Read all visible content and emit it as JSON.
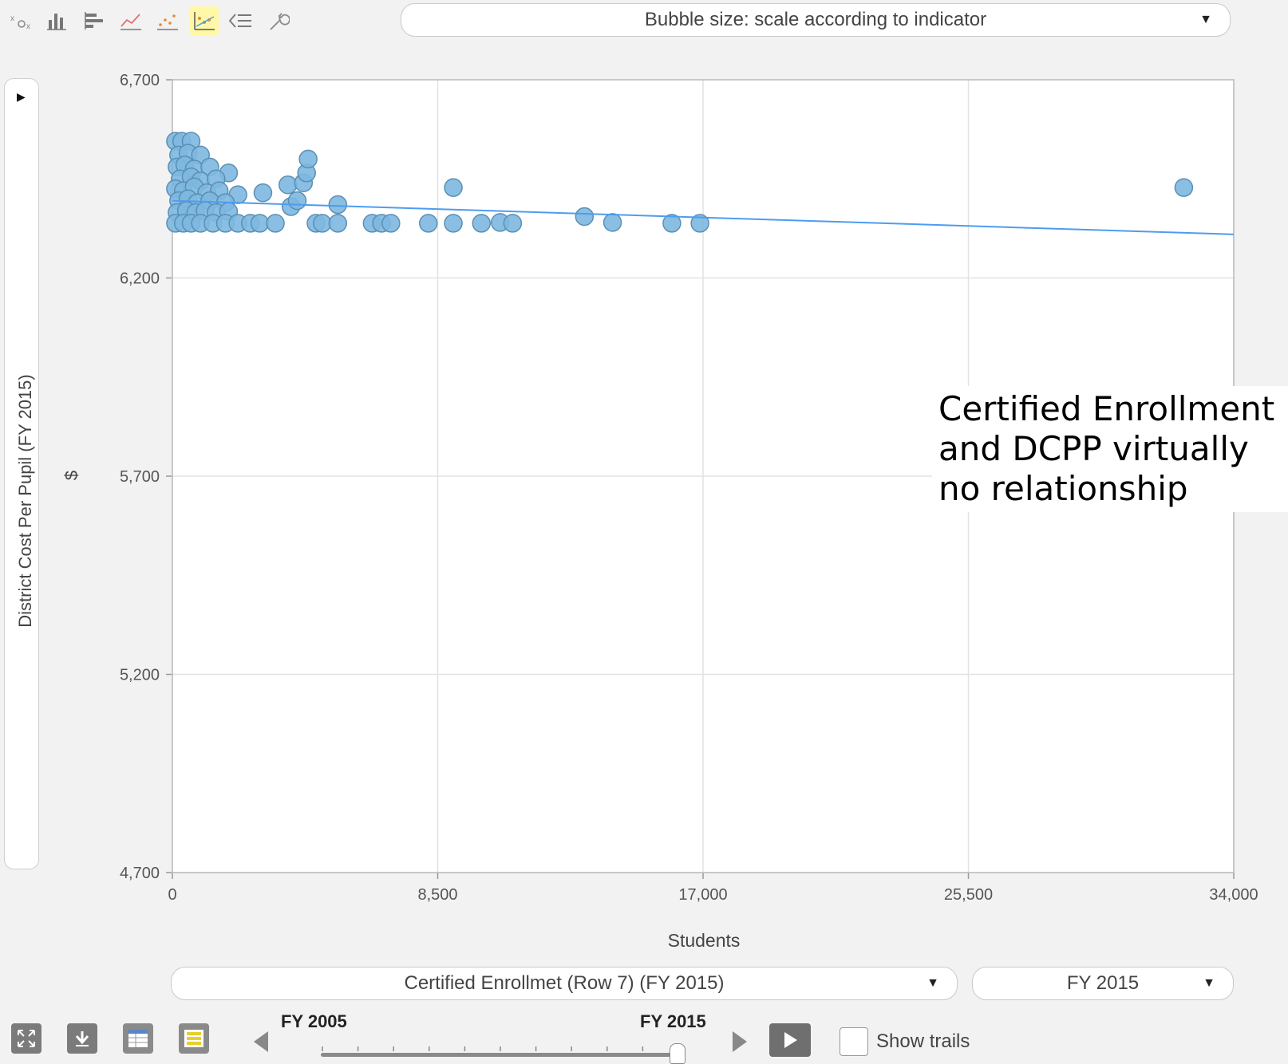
{
  "toolbar": {
    "tools": [
      {
        "name": "bubble-chart-icon",
        "active": false
      },
      {
        "name": "column-chart-icon",
        "active": false
      },
      {
        "name": "bar-chart-icon",
        "active": false
      },
      {
        "name": "line-chart-icon",
        "active": false
      },
      {
        "name": "scatter-chart-icon",
        "active": false
      },
      {
        "name": "scatter-trend-icon",
        "active": true
      },
      {
        "name": "list-icon",
        "active": false
      },
      {
        "name": "wrench-icon",
        "active": false
      }
    ],
    "bubble_size_select": "Bubble size: scale according to indicator"
  },
  "axes": {
    "y_title": "District Cost Per Pupil (FY 2015)",
    "y_unit": "$",
    "x_title": "Students"
  },
  "annotation": "Certified Enrollment\nand DCPP virtually\nno relationship",
  "controls": {
    "x_indicator_select": "Certified Enrollmet (Row 7)  (FY 2015)",
    "year_select": "FY 2015",
    "slider_start_label": "FY 2005",
    "slider_end_label": "FY 2015",
    "slider_fraction": 1.0,
    "show_trails_label": "Show trails",
    "show_trails_checked": false
  },
  "colors": {
    "bubble_fill": "#7db8e0",
    "bubble_stroke": "#5a8fb3",
    "trend_line": "#4d9cf0",
    "active_tool": "#fff8a6"
  },
  "chart_data": {
    "type": "scatter",
    "title": "",
    "xlabel": "Students",
    "ylabel": "District Cost Per Pupil (FY 2015)",
    "xlim": [
      0,
      34000
    ],
    "ylim": [
      4700,
      6700
    ],
    "xticks": [
      0,
      8500,
      17000,
      25500,
      34000
    ],
    "yticks": [
      4700,
      5200,
      5700,
      6200,
      6700
    ],
    "xtick_labels": [
      "0",
      "8,500",
      "17,000",
      "25,500",
      "34,000"
    ],
    "ytick_labels": [
      "4,700",
      "5,200",
      "5,700",
      "6,200",
      "6,700"
    ],
    "grid": true,
    "points": [
      [
        100,
        6545
      ],
      [
        300,
        6545
      ],
      [
        600,
        6545
      ],
      [
        200,
        6510
      ],
      [
        500,
        6515
      ],
      [
        900,
        6510
      ],
      [
        150,
        6480
      ],
      [
        400,
        6485
      ],
      [
        700,
        6475
      ],
      [
        1200,
        6480
      ],
      [
        1800,
        6465
      ],
      [
        250,
        6450
      ],
      [
        600,
        6455
      ],
      [
        900,
        6445
      ],
      [
        1400,
        6450
      ],
      [
        100,
        6425
      ],
      [
        350,
        6420
      ],
      [
        700,
        6430
      ],
      [
        1100,
        6415
      ],
      [
        1500,
        6420
      ],
      [
        2100,
        6410
      ],
      [
        200,
        6395
      ],
      [
        500,
        6400
      ],
      [
        800,
        6390
      ],
      [
        1200,
        6395
      ],
      [
        1700,
        6390
      ],
      [
        150,
        6365
      ],
      [
        450,
        6370
      ],
      [
        750,
        6365
      ],
      [
        1050,
        6370
      ],
      [
        1400,
        6365
      ],
      [
        1800,
        6368
      ],
      [
        100,
        6338
      ],
      [
        350,
        6338
      ],
      [
        600,
        6338
      ],
      [
        900,
        6338
      ],
      [
        1300,
        6338
      ],
      [
        1700,
        6338
      ],
      [
        2100,
        6338
      ],
      [
        2500,
        6338
      ],
      [
        2800,
        6338
      ],
      [
        3300,
        6338
      ],
      [
        2900,
        6415
      ],
      [
        3700,
        6435
      ],
      [
        4200,
        6440
      ],
      [
        4300,
        6465
      ],
      [
        4350,
        6500
      ],
      [
        3800,
        6380
      ],
      [
        4000,
        6395
      ],
      [
        5300,
        6385
      ],
      [
        4600,
        6338
      ],
      [
        4800,
        6338
      ],
      [
        5300,
        6338
      ],
      [
        6400,
        6338
      ],
      [
        6700,
        6338
      ],
      [
        7000,
        6338
      ],
      [
        8200,
        6338
      ],
      [
        9000,
        6338
      ],
      [
        9900,
        6338
      ],
      [
        10500,
        6340
      ],
      [
        10900,
        6338
      ],
      [
        9000,
        6428
      ],
      [
        13200,
        6355
      ],
      [
        14100,
        6340
      ],
      [
        16000,
        6338
      ],
      [
        16900,
        6338
      ],
      [
        32400,
        6428
      ]
    ],
    "trend_line": {
      "x": [
        0,
        34000
      ],
      "y": [
        6395,
        6310
      ]
    }
  }
}
